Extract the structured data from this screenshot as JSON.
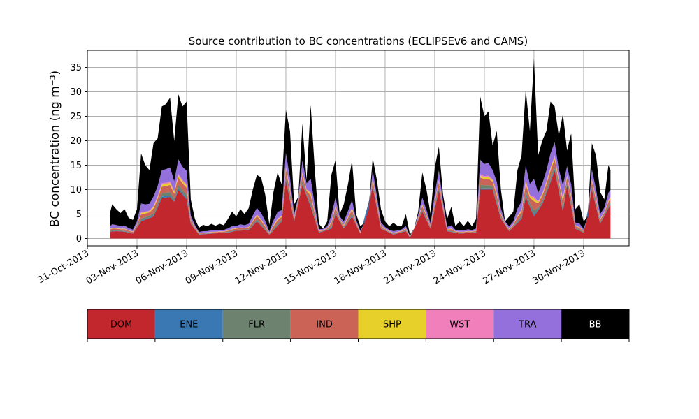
{
  "chart_data": {
    "type": "area",
    "stacked": true,
    "title": "Source contribution to BC concentrations (ECLIPSEv6 and CAMS)",
    "ylabel": "BC concentration (ng m⁻³)",
    "xlabel": "",
    "ylim": [
      -1.5,
      38.5
    ],
    "xlim": [
      "2013-10-31T00:00",
      "2013-12-02T18:00"
    ],
    "grid": true,
    "x_ticks": [
      "31-Oct-2013",
      "03-Nov-2013",
      "06-Nov-2013",
      "09-Nov-2013",
      "12-Nov-2013",
      "15-Nov-2013",
      "18-Nov-2013",
      "21-Nov-2013",
      "24-Nov-2013",
      "27-Nov-2013",
      "30-Nov-2013"
    ],
    "y_ticks": [
      "0",
      "5",
      "10",
      "15",
      "20",
      "25",
      "30",
      "35"
    ],
    "legend_position": "below-plot",
    "legend": [
      "DOM",
      "ENE",
      "FLR",
      "IND",
      "SHP",
      "WST",
      "TRA",
      "BB"
    ],
    "series_colors": {
      "DOM": "#c1272d",
      "ENE": "#3a78b3",
      "FLR": "#6e8270",
      "IND": "#cb6457",
      "SHP": "#e8d02a",
      "WST": "#f07fbc",
      "TRA": "#9370db",
      "BB": "#000000"
    },
    "total_points": [
      [
        "2013-11-01T09:00",
        5.3
      ],
      [
        "2013-11-01T12:00",
        7.0
      ],
      [
        "2013-11-01T18:00",
        6.0
      ],
      [
        "2013-11-02T00:00",
        5.2
      ],
      [
        "2013-11-02T06:00",
        6.0
      ],
      [
        "2013-11-02T12:00",
        4.2
      ],
      [
        "2013-11-02T18:00",
        3.8
      ],
      [
        "2013-11-03T00:00",
        6.0
      ],
      [
        "2013-11-03T06:00",
        17.4
      ],
      [
        "2013-11-03T12:00",
        15.0
      ],
      [
        "2013-11-03T18:00",
        14.0
      ],
      [
        "2013-11-04T00:00",
        19.5
      ],
      [
        "2013-11-04T06:00",
        20.5
      ],
      [
        "2013-11-04T12:00",
        27.0
      ],
      [
        "2013-11-04T18:00",
        27.5
      ],
      [
        "2013-11-05T00:00",
        28.8
      ],
      [
        "2013-11-05T06:00",
        20.0
      ],
      [
        "2013-11-05T12:00",
        29.5
      ],
      [
        "2013-11-05T18:00",
        27.0
      ],
      [
        "2013-11-06T00:00",
        28.0
      ],
      [
        "2013-11-06T06:00",
        8.0
      ],
      [
        "2013-11-06T12:00",
        4.0
      ],
      [
        "2013-11-06T18:00",
        2.2
      ],
      [
        "2013-11-07T00:00",
        2.8
      ],
      [
        "2013-11-07T06:00",
        2.5
      ],
      [
        "2013-11-07T12:00",
        3.0
      ],
      [
        "2013-11-07T18:00",
        2.6
      ],
      [
        "2013-11-08T00:00",
        3.0
      ],
      [
        "2013-11-08T06:00",
        2.7
      ],
      [
        "2013-11-08T12:00",
        4.0
      ],
      [
        "2013-11-08T18:00",
        5.5
      ],
      [
        "2013-11-09T00:00",
        4.5
      ],
      [
        "2013-11-09T06:00",
        6.0
      ],
      [
        "2013-11-09T12:00",
        5.0
      ],
      [
        "2013-11-09T18:00",
        6.2
      ],
      [
        "2013-11-10T00:00",
        10.0
      ],
      [
        "2013-11-10T06:00",
        13.0
      ],
      [
        "2013-11-10T12:00",
        12.5
      ],
      [
        "2013-11-10T18:00",
        9.0
      ],
      [
        "2013-11-11T00:00",
        2.8
      ],
      [
        "2013-11-11T06:00",
        9.5
      ],
      [
        "2013-11-11T12:00",
        13.5
      ],
      [
        "2013-11-11T18:00",
        11.0
      ],
      [
        "2013-11-12T00:00",
        26.3
      ],
      [
        "2013-11-12T06:00",
        22.0
      ],
      [
        "2013-11-12T12:00",
        7.0
      ],
      [
        "2013-11-12T18:00",
        8.5
      ],
      [
        "2013-11-13T00:00",
        23.5
      ],
      [
        "2013-11-13T06:00",
        12.0
      ],
      [
        "2013-11-13T12:00",
        27.3
      ],
      [
        "2013-11-13T18:00",
        14.0
      ],
      [
        "2013-11-14T00:00",
        3.0
      ],
      [
        "2013-11-14T06:00",
        2.0
      ],
      [
        "2013-11-14T12:00",
        3.5
      ],
      [
        "2013-11-14T18:00",
        13.0
      ],
      [
        "2013-11-15T00:00",
        16.0
      ],
      [
        "2013-11-15T06:00",
        5.0
      ],
      [
        "2013-11-15T12:00",
        7.0
      ],
      [
        "2013-11-15T18:00",
        11.0
      ],
      [
        "2013-11-16T00:00",
        16.0
      ],
      [
        "2013-11-16T06:00",
        5.0
      ],
      [
        "2013-11-16T12:00",
        2.5
      ],
      [
        "2013-11-16T18:00",
        3.2
      ],
      [
        "2013-11-17T00:00",
        6.0
      ],
      [
        "2013-11-17T06:00",
        16.5
      ],
      [
        "2013-11-17T12:00",
        12.0
      ],
      [
        "2013-11-17T18:00",
        6.0
      ],
      [
        "2013-11-18T00:00",
        3.5
      ],
      [
        "2013-11-18T06:00",
        2.5
      ],
      [
        "2013-11-18T12:00",
        3.2
      ],
      [
        "2013-11-18T18:00",
        2.6
      ],
      [
        "2013-11-19T00:00",
        2.5
      ],
      [
        "2013-11-19T06:00",
        5.0
      ],
      [
        "2013-11-19T12:00",
        0.8
      ],
      [
        "2013-11-19T18:00",
        2.0
      ],
      [
        "2013-11-20T00:00",
        5.5
      ],
      [
        "2013-11-20T06:00",
        13.5
      ],
      [
        "2013-11-20T12:00",
        10.0
      ],
      [
        "2013-11-20T18:00",
        5.0
      ],
      [
        "2013-11-21T00:00",
        14.5
      ],
      [
        "2013-11-21T06:00",
        18.8
      ],
      [
        "2013-11-21T12:00",
        9.0
      ],
      [
        "2013-11-21T18:00",
        4.0
      ],
      [
        "2013-11-22T00:00",
        6.5
      ],
      [
        "2013-11-22T06:00",
        2.5
      ],
      [
        "2013-11-22T12:00",
        3.5
      ],
      [
        "2013-11-22T18:00",
        2.5
      ],
      [
        "2013-11-23T00:00",
        3.6
      ],
      [
        "2013-11-23T06:00",
        2.5
      ],
      [
        "2013-11-23T12:00",
        4.0
      ],
      [
        "2013-11-23T18:00",
        29.0
      ],
      [
        "2013-11-24T00:00",
        25.0
      ],
      [
        "2013-11-24T06:00",
        26.0
      ],
      [
        "2013-11-24T12:00",
        19.0
      ],
      [
        "2013-11-24T18:00",
        22.0
      ],
      [
        "2013-11-25T00:00",
        10.0
      ],
      [
        "2013-11-25T06:00",
        3.5
      ],
      [
        "2013-11-25T12:00",
        4.5
      ],
      [
        "2013-11-25T18:00",
        5.5
      ],
      [
        "2013-11-26T00:00",
        14.0
      ],
      [
        "2013-11-26T06:00",
        17.0
      ],
      [
        "2013-11-26T12:00",
        30.5
      ],
      [
        "2013-11-26T18:00",
        22.0
      ],
      [
        "2013-11-27T00:00",
        36.8
      ],
      [
        "2013-11-27T06:00",
        17.0
      ],
      [
        "2013-11-27T12:00",
        20.0
      ],
      [
        "2013-11-27T18:00",
        22.0
      ],
      [
        "2013-11-28T00:00",
        28.0
      ],
      [
        "2013-11-28T06:00",
        27.0
      ],
      [
        "2013-11-28T12:00",
        21.0
      ],
      [
        "2013-11-28T18:00",
        25.5
      ],
      [
        "2013-11-29T00:00",
        18.0
      ],
      [
        "2013-11-29T06:00",
        21.5
      ],
      [
        "2013-11-29T12:00",
        6.0
      ],
      [
        "2013-11-29T18:00",
        7.0
      ],
      [
        "2013-11-30T00:00",
        3.5
      ],
      [
        "2013-11-30T06:00",
        4.5
      ],
      [
        "2013-11-30T12:00",
        19.5
      ],
      [
        "2013-11-30T18:00",
        17.0
      ],
      [
        "2013-12-01T00:00",
        9.5
      ],
      [
        "2013-12-01T06:00",
        8.0
      ],
      [
        "2013-12-01T12:00",
        15.0
      ],
      [
        "2013-12-01T15:00",
        14.0
      ]
    ],
    "dom_points": [
      [
        "2013-11-01T09:00",
        1.4
      ],
      [
        "2013-11-01T18:00",
        1.5
      ],
      [
        "2013-11-02T06:00",
        1.4
      ],
      [
        "2013-11-02T18:00",
        1.0
      ],
      [
        "2013-11-03T06:00",
        3.5
      ],
      [
        "2013-11-04T00:00",
        4.5
      ],
      [
        "2013-11-04T12:00",
        8.3
      ],
      [
        "2013-11-05T00:00",
        8.5
      ],
      [
        "2013-11-05T06:00",
        7.5
      ],
      [
        "2013-11-05T12:00",
        10.0
      ],
      [
        "2013-11-06T00:00",
        8.0
      ],
      [
        "2013-11-06T06:00",
        3.0
      ],
      [
        "2013-11-06T18:00",
        0.8
      ],
      [
        "2013-11-07T12:00",
        1.0
      ],
      [
        "2013-11-08T12:00",
        1.2
      ],
      [
        "2013-11-09T00:00",
        1.6
      ],
      [
        "2013-11-09T18:00",
        1.7
      ],
      [
        "2013-11-10T06:00",
        3.5
      ],
      [
        "2013-11-11T00:00",
        0.8
      ],
      [
        "2013-11-11T18:00",
        3.5
      ],
      [
        "2013-11-12T00:00",
        12.0
      ],
      [
        "2013-11-12T12:00",
        3.5
      ],
      [
        "2013-11-13T00:00",
        11.0
      ],
      [
        "2013-11-13T12:00",
        6.5
      ],
      [
        "2013-11-14T00:00",
        1.2
      ],
      [
        "2013-11-14T18:00",
        2.0
      ],
      [
        "2013-11-15T00:00",
        5.0
      ],
      [
        "2013-11-15T12:00",
        2.0
      ],
      [
        "2013-11-16T00:00",
        4.5
      ],
      [
        "2013-11-16T12:00",
        1.0
      ],
      [
        "2013-11-17T06:00",
        10.5
      ],
      [
        "2013-11-17T18:00",
        2.0
      ],
      [
        "2013-11-18T12:00",
        0.8
      ],
      [
        "2013-11-19T06:00",
        1.5
      ],
      [
        "2013-11-19T12:00",
        0.2
      ],
      [
        "2013-11-20T06:00",
        5.5
      ],
      [
        "2013-11-20T18:00",
        2.0
      ],
      [
        "2013-11-21T06:00",
        10.0
      ],
      [
        "2013-11-21T18:00",
        1.5
      ],
      [
        "2013-11-22T12:00",
        1.0
      ],
      [
        "2013-11-23T12:00",
        1.2
      ],
      [
        "2013-11-23T18:00",
        10.0
      ],
      [
        "2013-11-24T12:00",
        10.0
      ],
      [
        "2013-11-25T00:00",
        4.0
      ],
      [
        "2013-11-25T12:00",
        1.5
      ],
      [
        "2013-11-26T06:00",
        4.0
      ],
      [
        "2013-11-26T12:00",
        8.5
      ],
      [
        "2013-11-27T00:00",
        4.5
      ],
      [
        "2013-11-27T12:00",
        7.0
      ],
      [
        "2013-11-28T00:00",
        11.5
      ],
      [
        "2013-11-28T06:00",
        14.0
      ],
      [
        "2013-11-28T18:00",
        5.5
      ],
      [
        "2013-11-29T00:00",
        11.0
      ],
      [
        "2013-11-29T12:00",
        2.0
      ],
      [
        "2013-11-30T00:00",
        1.2
      ],
      [
        "2013-11-30T12:00",
        10.0
      ],
      [
        "2013-12-01T00:00",
        3.0
      ],
      [
        "2013-12-01T15:00",
        7.0
      ]
    ],
    "minor_layers": [
      {
        "name": "ENE",
        "share": 0.01
      },
      {
        "name": "FLR",
        "share": 0.025
      },
      {
        "name": "IND",
        "share": 0.05
      },
      {
        "name": "SHP",
        "share": 0.015
      },
      {
        "name": "WST",
        "share": 0.01
      },
      {
        "name": "TRA",
        "share": 0.1
      }
    ]
  }
}
